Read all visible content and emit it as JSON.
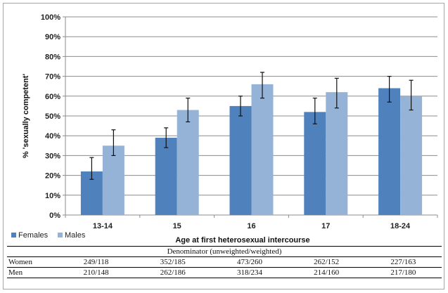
{
  "chart_data": {
    "type": "bar",
    "title": "",
    "xlabel": "Age at first heterosexual intercourse",
    "ylabel": "% 'sexually competent'",
    "categories": [
      "13-14",
      "15",
      "16",
      "17",
      "18-24"
    ],
    "ylim": [
      0,
      100
    ],
    "yticks": [
      "0%",
      "10%",
      "20%",
      "30%",
      "40%",
      "50%",
      "60%",
      "70%",
      "80%",
      "90%",
      "100%"
    ],
    "grid": true,
    "legend_position": "bottom-left",
    "series": [
      {
        "name": "Females",
        "color": "#4f81bd",
        "values": [
          22,
          39,
          55,
          52,
          64
        ],
        "error_low": [
          18,
          34,
          50,
          46,
          57
        ],
        "error_high": [
          29,
          44,
          60,
          59,
          70
        ]
      },
      {
        "name": "Males",
        "color": "#95b3d7",
        "values": [
          35,
          53,
          66,
          62,
          60
        ],
        "error_low": [
          30,
          47,
          59,
          54,
          53
        ],
        "error_high": [
          43,
          59,
          72,
          69,
          68
        ]
      }
    ]
  },
  "table": {
    "header": "Denominator (unweighted/weighted)",
    "rows": [
      {
        "label": "Women",
        "values": [
          "249/118",
          "352/185",
          "473/260",
          "262/152",
          "227/163"
        ]
      },
      {
        "label": "Men",
        "values": [
          "210/148",
          "262/186",
          "318/234",
          "214/160",
          "217/180"
        ]
      }
    ]
  }
}
